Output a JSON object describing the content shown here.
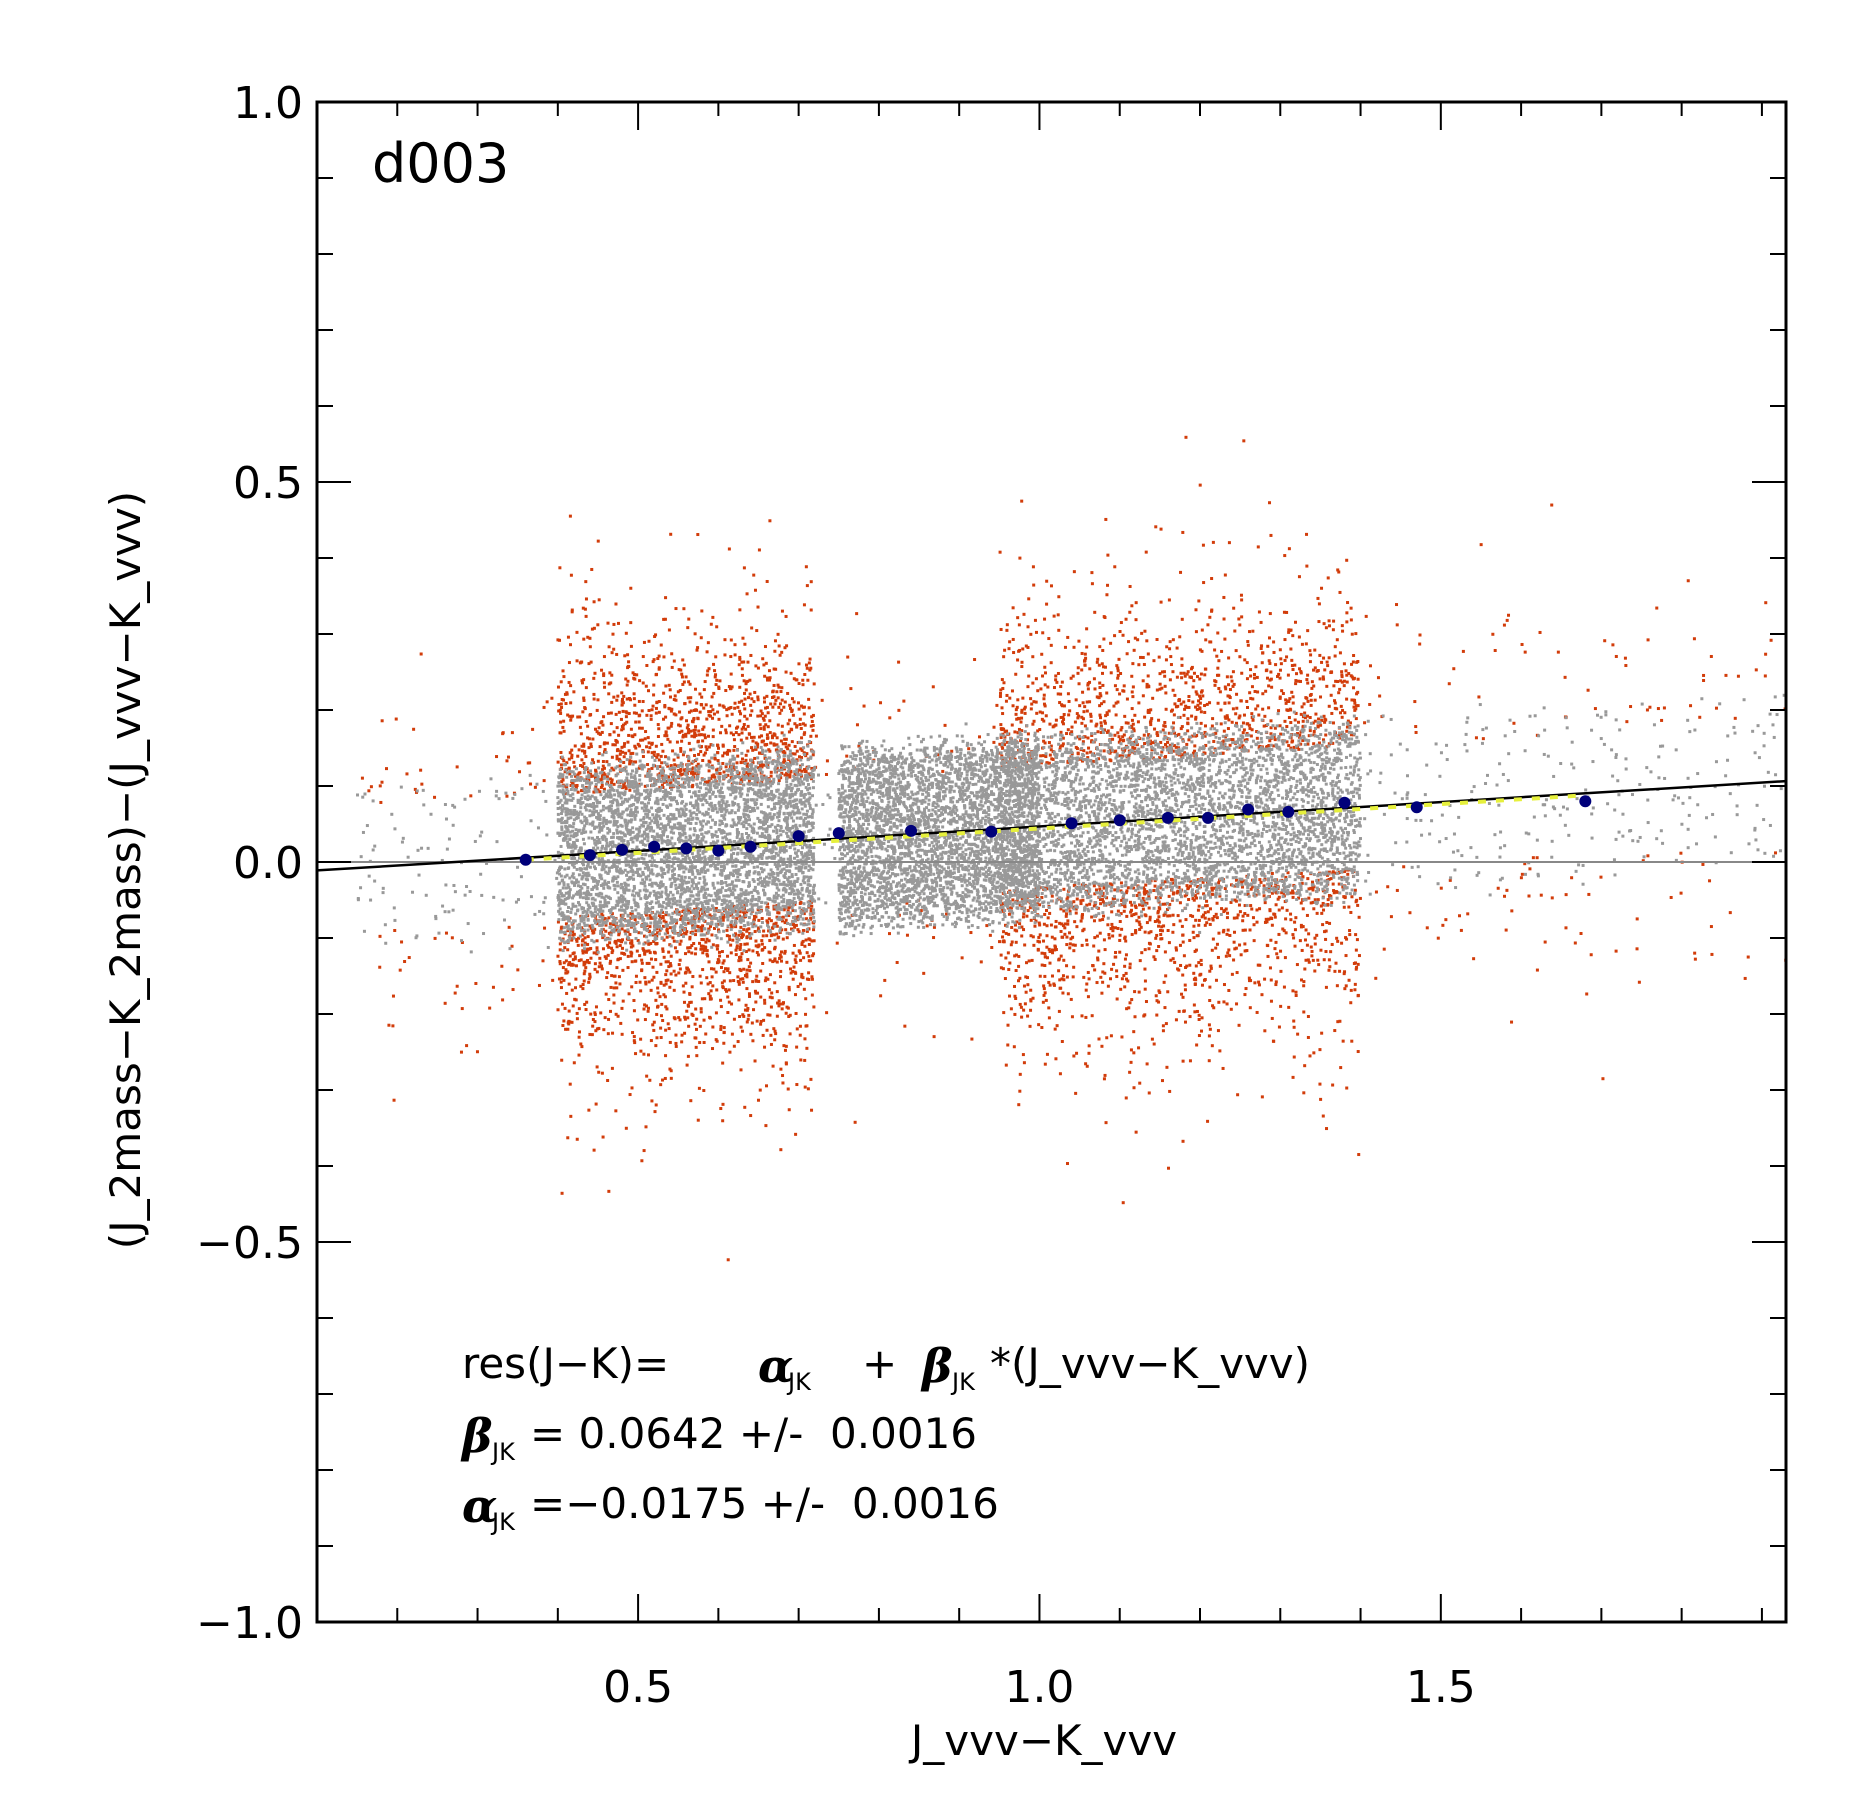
{
  "chart_data": {
    "type": "scatter",
    "title": "",
    "panel_label": "d003",
    "xlabel": "J_vvv−K_vvv",
    "ylabel": "(J_2mass−K_2mass)−(J_vvv−K_vvv)",
    "xlim": [
      0.1,
      1.93
    ],
    "ylim": [
      -1.0,
      1.0
    ],
    "x_ticks": [
      0.5,
      1.0,
      1.5
    ],
    "x_tick_labels": [
      "0.5",
      "1.0",
      "1.5"
    ],
    "y_ticks": [
      1.0,
      0.5,
      0.0,
      -0.5,
      -1.0
    ],
    "y_tick_labels": [
      "1.0",
      "0.5",
      "0.0",
      "−0.5",
      "−1.0"
    ],
    "grid": false,
    "colors": {
      "outliers": "#d23c0a",
      "kept": "#999999",
      "binned": "#00007a",
      "fit": "#000000",
      "fit_dashed": "#e6f03c",
      "zero_line": "#888888"
    },
    "series": [
      {
        "kind": "binned_medians",
        "x": [
          0.36,
          0.44,
          0.48,
          0.52,
          0.56,
          0.6,
          0.64,
          0.7,
          0.75,
          0.84,
          0.94,
          1.04,
          1.1,
          1.16,
          1.21,
          1.26,
          1.31,
          1.38,
          1.47,
          1.68
        ],
        "y": [
          0.003,
          0.009,
          0.016,
          0.02,
          0.018,
          0.015,
          0.02,
          0.034,
          0.038,
          0.041,
          0.04,
          0.051,
          0.055,
          0.058,
          0.058,
          0.069,
          0.066,
          0.078,
          0.072,
          0.08
        ]
      },
      {
        "kind": "linear_fit",
        "alpha": -0.0175,
        "beta": 0.0642
      }
    ],
    "annotations": {
      "equation": {
        "prefix": "res(J−K)=",
        "alpha_sym": "α",
        "beta_sym": "β",
        "subscript": "JK",
        "plus": "+",
        "term": "*(J_vvv−K_vvv)"
      },
      "beta_line": {
        "value": "= 0.0642 +/-  0.0016"
      },
      "alpha_line": {
        "value": "=−0.0175 +/-  0.0016"
      }
    }
  }
}
